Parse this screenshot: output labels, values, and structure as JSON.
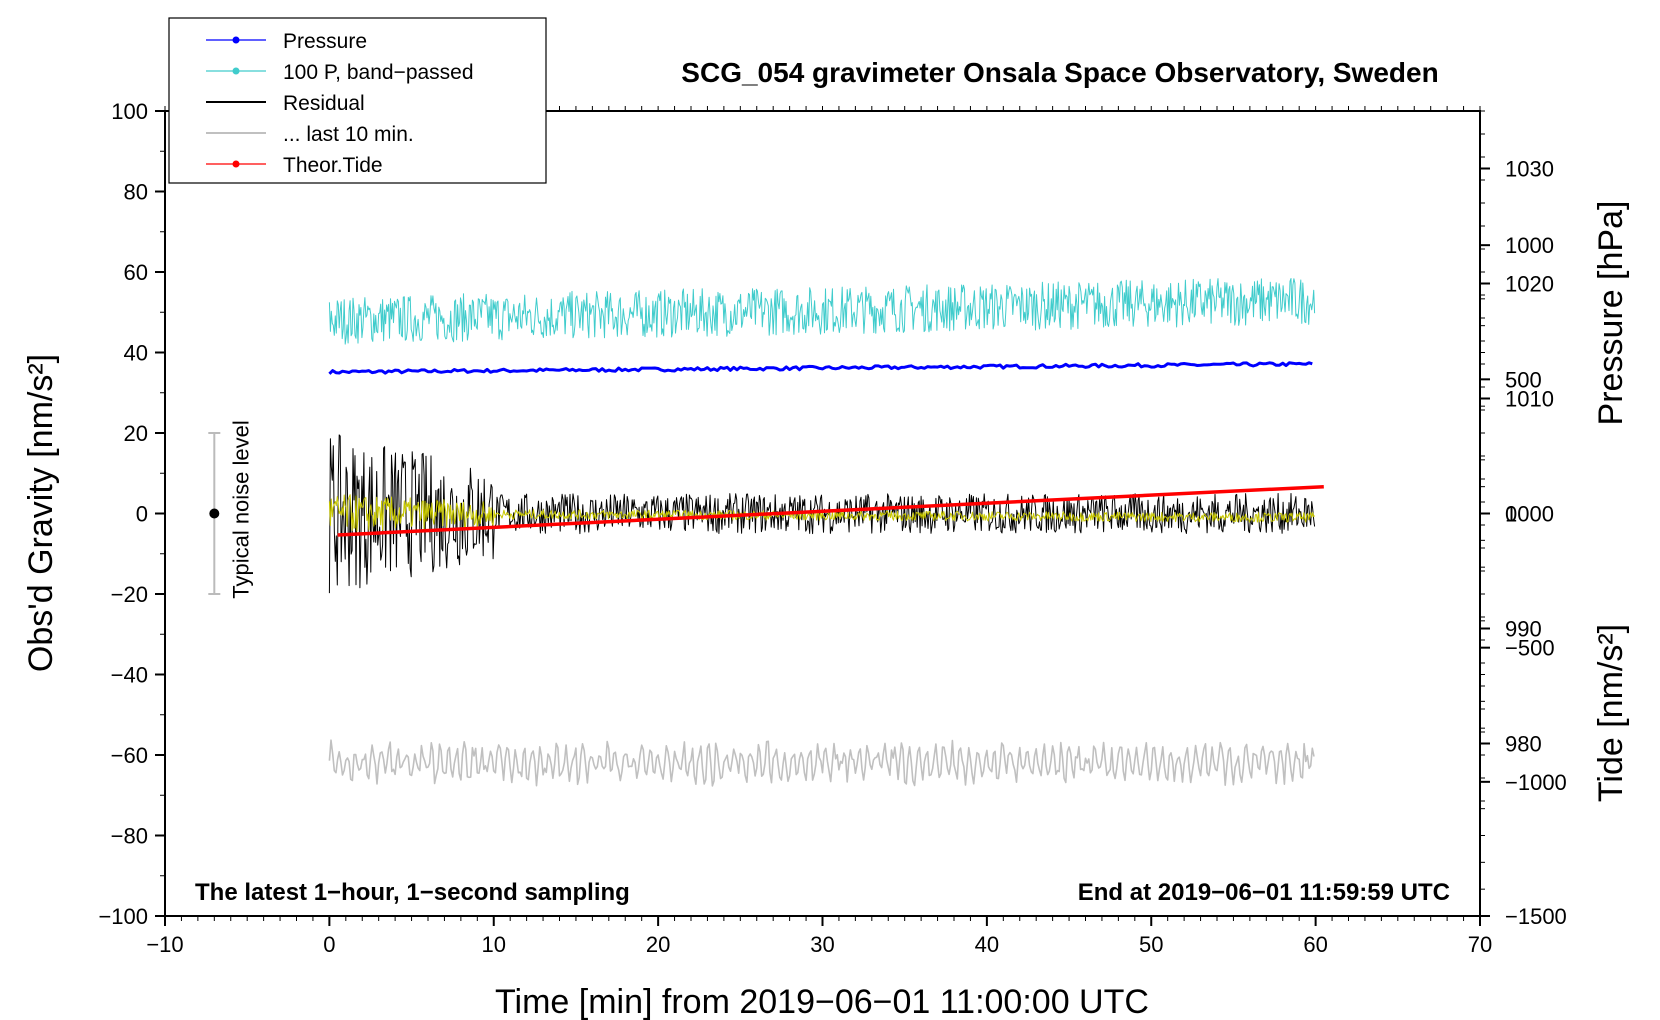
{
  "chart_data": {
    "type": "line",
    "title": "SCG_054 gravimeter Onsala Space Observatory, Sweden",
    "xlabel": "Time [min] from 2019−06−01 11:00:00 UTC",
    "ylabel_left": "Obs'd Gravity [nm/s²]",
    "ylabel_right_top": "Pressure [hPa]",
    "ylabel_right_bottom": "Tide [nm/s²]",
    "xlim": [
      -10,
      70
    ],
    "ylim": [
      -100,
      100
    ],
    "pressure_lim": [
      965,
      1035
    ],
    "tide_lim": [
      -1500,
      1500
    ],
    "x_ticks": [
      "−10",
      "0",
      "10",
      "20",
      "30",
      "40",
      "50",
      "60",
      "70"
    ],
    "y_ticks": [
      "−100",
      "−80",
      "−60",
      "−40",
      "−20",
      "0",
      "20",
      "40",
      "60",
      "80",
      "100"
    ],
    "pressure_ticks": [
      "980",
      "990",
      "1000",
      "1010",
      "1020",
      "1030"
    ],
    "tide_ticks": [
      "−1500",
      "−1000",
      "−500",
      "0",
      "500",
      "1000"
    ],
    "note_left": "The latest 1−hour, 1−second sampling",
    "note_right": "End at 2019−06−01 11:59:59 UTC",
    "noise_label": "Typical noise level",
    "noise_level": {
      "x": -7,
      "center": 0,
      "range": [
        -20,
        20
      ]
    },
    "legend": [
      "Pressure",
      "100 P, band−passed",
      "Residual",
      "... last 10 min.",
      "Theor.Tide"
    ],
    "series": [
      {
        "name": "Pressure",
        "color": "#0000ff",
        "axis": "pressure",
        "x": [
          0,
          60
        ],
        "values": [
          1012.3,
          1013.0
        ],
        "style": "noise",
        "amplitude": 0.15
      },
      {
        "name": "100 P, band−passed",
        "color": "#40cccc",
        "axis": "left",
        "x": [
          0,
          60
        ],
        "values": [
          48,
          53
        ],
        "style": "noise",
        "amplitude": 6
      },
      {
        "name": "Residual",
        "color": "#000000",
        "axis": "left",
        "x": [
          0,
          60
        ],
        "values": [
          0,
          0
        ],
        "style": "noise",
        "amplitude": 5,
        "early_amplitude": 20,
        "early_until": 10
      },
      {
        "name": "Residual (smoothed)",
        "color": "#c8c800",
        "axis": "left",
        "x": [
          0,
          60
        ],
        "values": [
          0,
          -1
        ],
        "style": "noise",
        "amplitude": 1.2,
        "early_amplitude": 5,
        "early_until": 10
      },
      {
        "name": "... last 10 min.",
        "color": "#c0c0c0",
        "axis": "left",
        "x": [
          0,
          60
        ],
        "values": [
          -62,
          -62
        ],
        "style": "noise",
        "amplitude": 5
      },
      {
        "name": "Theor.Tide",
        "color": "#ff0000",
        "axis": "tide",
        "x": [
          0.5,
          60.5
        ],
        "values": [
          -80,
          100
        ],
        "style": "line"
      }
    ]
  }
}
